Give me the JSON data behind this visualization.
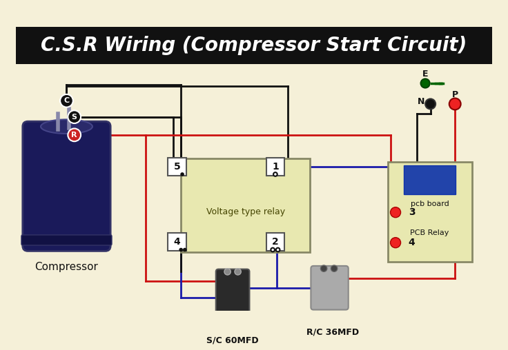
{
  "title": "C.S.R Wiring (Compressor Start Circuit)",
  "title_bg": "#111111",
  "title_color": "#ffffff",
  "bg_color": "#f5f0d8",
  "fig_size": [
    7.36,
    5.08
  ],
  "dpi": 100,
  "compressor_label": "Compressor",
  "relay_label": "Voltage type relay",
  "pcb_board_label": "pcb board",
  "pcb_relay_label": "PCB Relay",
  "sc_cap_label": "S/C 60MFD",
  "rc_cap_label": "R/C 36MFD",
  "terminal_C": "C",
  "terminal_S": "S",
  "terminal_R": "R",
  "terminal_N": "N",
  "terminal_P": "P",
  "terminal_E": "E",
  "relay_pins": [
    "5",
    "1",
    "4",
    "2"
  ],
  "pcb_pins": [
    "3",
    "4"
  ],
  "wire_blue": "#1a1aaa",
  "wire_red": "#cc1111",
  "wire_dark": "#111111",
  "wire_green": "#228B22",
  "dot_red": "#ee2222",
  "dot_dark": "#111111",
  "dot_green": "#006400",
  "relay_bg": "#e8e8b0",
  "pcb_bg": "#e8e8b0",
  "relay_border": "#aaaaaa",
  "pcb_inner_bg": "#2244aa"
}
